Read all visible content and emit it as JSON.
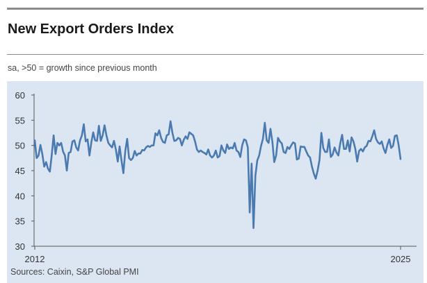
{
  "header": {
    "title": "New Export Orders Index",
    "subtitle": "sa, >50 = growth since previous month"
  },
  "footer": {
    "source": "Sources: Caixin, S&P Global PMI"
  },
  "colors": {
    "plot_background": "#dce6f2",
    "line": "#4a7ab0",
    "axis": "#555555",
    "rule": "#8c8c8c"
  },
  "chart_data": {
    "type": "line",
    "title": "New Export Orders Index",
    "subtitle": "sa, >50 = growth since previous month",
    "xlabel": "",
    "ylabel": "",
    "ylim": [
      30,
      60
    ],
    "yticks": [
      30,
      35,
      40,
      45,
      50,
      55,
      60
    ],
    "xtick_labels": [
      "2012",
      "2025"
    ],
    "grid": false,
    "legend": "none",
    "x_start": "2012-01",
    "x_frequency": "monthly",
    "series": [
      {
        "values": [
          51.0,
          47.5,
          48.0,
          50.1,
          48.3,
          45.8,
          46.7,
          45.4,
          44.8,
          48.1,
          52.0,
          48.3,
          50.5,
          50.0,
          50.5,
          48.8,
          48.0,
          45.0,
          48.5,
          48.7,
          50.8,
          51.0,
          49.6,
          49.0,
          51.0,
          52.0,
          54.2,
          50.8,
          51.2,
          48.0,
          50.6,
          52.6,
          51.0,
          50.9,
          53.9,
          50.9,
          52.0,
          54.0,
          52.0,
          50.5,
          50.0,
          49.6,
          50.9,
          49.2,
          46.8,
          49.8,
          47.0,
          44.5,
          48.9,
          51.3,
          47.5,
          47.1,
          47.5,
          48.9,
          48.0,
          48.4,
          48.4,
          49.1,
          49.0,
          49.6,
          49.9,
          49.7,
          50.0,
          50.0,
          52.4,
          52.0,
          53.0,
          51.5,
          50.7,
          50.5,
          52.0,
          52.2,
          54.8,
          52.5,
          50.9,
          51.0,
          51.5,
          51.3,
          50.0,
          51.1,
          51.8,
          51.3,
          52.6,
          52.3,
          52.0,
          50.8,
          49.2,
          48.7,
          49.0,
          48.7,
          48.5,
          48.2,
          49.2,
          48.0,
          47.6,
          48.0,
          49.0,
          47.6,
          47.9,
          50.0,
          49.0,
          48.5,
          50.2,
          49.3,
          49.6,
          49.4,
          50.5,
          49.0,
          48.7,
          47.7,
          50.0,
          51.2,
          51.0,
          49.6,
          36.7,
          46.4,
          33.6,
          44.0,
          47.0,
          48.0,
          49.9,
          51.3,
          54.5,
          51.0,
          50.5,
          53.3,
          50.8,
          46.7,
          48.0,
          51.5,
          50.8,
          50.4,
          48.7,
          48.5,
          49.7,
          49.3,
          50.0,
          50.6,
          50.4,
          47.2,
          47.4,
          49.8,
          49.7,
          49.7,
          48.8,
          48.0,
          47.6,
          45.8,
          44.4,
          43.4,
          45.0,
          47.1,
          52.5,
          49.5,
          48.7,
          48.7,
          51.2,
          47.7,
          48.2,
          49.6,
          48.6,
          48.0,
          50.4,
          52.1,
          49.3,
          49.3,
          51.0,
          48.8,
          51.6,
          50.8,
          49.3,
          46.8,
          48.9,
          49.3,
          48.8,
          49.6,
          49.9,
          50.9,
          50.8,
          51.8,
          53.0,
          51.3,
          50.6,
          50.3,
          50.8,
          49.4,
          48.5,
          50.1,
          51.2,
          49.5,
          49.9,
          51.9,
          52.0,
          50.0,
          47.3
        ]
      }
    ]
  }
}
